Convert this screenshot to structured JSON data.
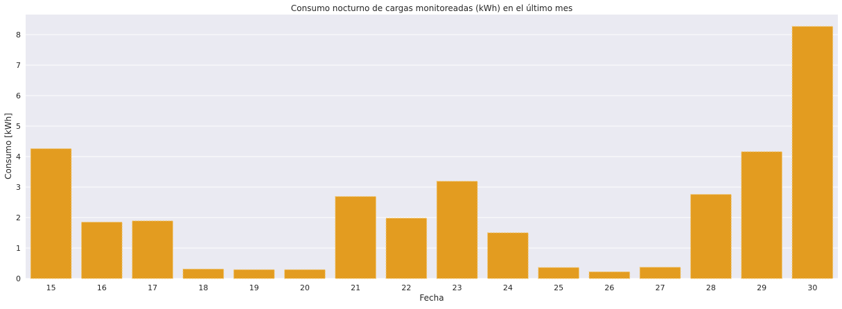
{
  "chart_data": {
    "type": "bar",
    "title": "Consumo nocturno de cargas monitoreadas (kWh) en el último mes",
    "xlabel": "Fecha",
    "ylabel": "Consumo [kWh]",
    "categories": [
      "15",
      "16",
      "17",
      "18",
      "19",
      "20",
      "21",
      "22",
      "23",
      "24",
      "25",
      "26",
      "27",
      "28",
      "29",
      "30"
    ],
    "values": [
      4.26,
      1.85,
      1.89,
      0.31,
      0.29,
      0.29,
      2.69,
      1.98,
      3.19,
      1.5,
      0.36,
      0.22,
      0.37,
      2.76,
      4.16,
      8.27
    ],
    "ylim": [
      0,
      8.66
    ],
    "yticks": [
      0,
      1,
      2,
      3,
      4,
      5,
      6,
      7,
      8
    ],
    "grid": true,
    "colors": {
      "bar": "#e39c20",
      "bar_edge": "#f3c76c",
      "plot_background": "#eaeaf2",
      "grid": "#ffffff"
    }
  }
}
